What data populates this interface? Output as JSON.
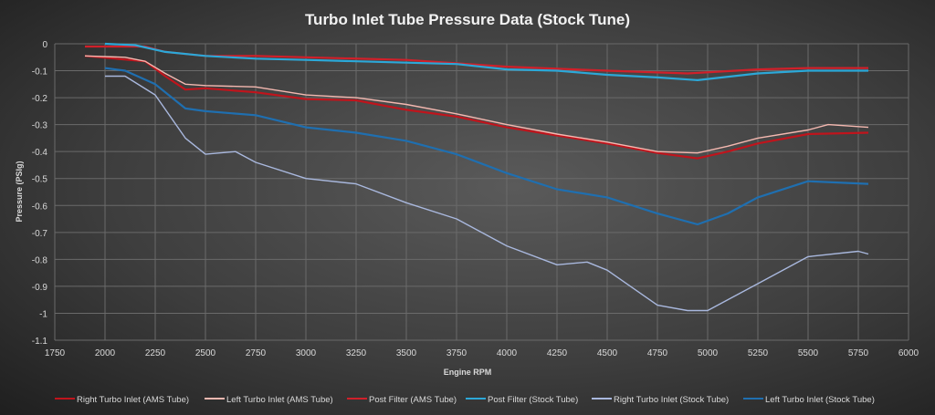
{
  "chart_data": {
    "type": "line",
    "title": "Turbo Inlet Tube Pressure Data (Stock Tune)",
    "xlabel": "Engine RPM",
    "ylabel": "Pressure (PSIg)",
    "xlim": [
      1750,
      6000
    ],
    "ylim": [
      -1.1,
      0
    ],
    "xticks": [
      1750,
      2000,
      2250,
      2500,
      2750,
      3000,
      3250,
      3500,
      3750,
      4000,
      4250,
      4500,
      4750,
      5000,
      5250,
      5500,
      5750,
      6000
    ],
    "yticks": [
      0,
      -0.1,
      -0.2,
      -0.3,
      -0.4,
      -0.5,
      -0.6,
      -0.7,
      -0.8,
      -0.9,
      -1,
      -1.1
    ],
    "grid": true,
    "legend_position": "bottom",
    "series": [
      {
        "name": "Right Turbo Inlet (AMS Tube)",
        "color": "#c0141c",
        "x": [
          1900,
          2200,
          2300,
          2400,
          2500,
          2750,
          3000,
          3250,
          3500,
          3750,
          4000,
          4250,
          4500,
          4750,
          4950,
          5100,
          5250,
          5500,
          5800
        ],
        "y": [
          -0.045,
          -0.065,
          -0.12,
          -0.17,
          -0.165,
          -0.18,
          -0.205,
          -0.21,
          -0.245,
          -0.27,
          -0.31,
          -0.34,
          -0.37,
          -0.405,
          -0.425,
          -0.4,
          -0.37,
          -0.335,
          -0.33
        ]
      },
      {
        "name": "Left Turbo Inlet (AMS Tube)",
        "color": "#f4b8b0",
        "x": [
          1900,
          2100,
          2200,
          2300,
          2400,
          2500,
          2750,
          3000,
          3250,
          3500,
          3750,
          4000,
          4250,
          4500,
          4750,
          4950,
          5100,
          5250,
          5500,
          5600,
          5800
        ],
        "y": [
          -0.045,
          -0.05,
          -0.065,
          -0.11,
          -0.15,
          -0.155,
          -0.16,
          -0.19,
          -0.2,
          -0.225,
          -0.26,
          -0.3,
          -0.335,
          -0.365,
          -0.4,
          -0.405,
          -0.38,
          -0.35,
          -0.32,
          -0.3,
          -0.31
        ]
      },
      {
        "name": "Post Filter (AMS Tube)",
        "color": "#d0202a",
        "x": [
          1900,
          2200,
          2300,
          2500,
          2750,
          3000,
          3500,
          4000,
          4500,
          4900,
          5250,
          5500,
          5800
        ],
        "y": [
          -0.01,
          -0.01,
          -0.03,
          -0.045,
          -0.045,
          -0.05,
          -0.06,
          -0.085,
          -0.1,
          -0.11,
          -0.095,
          -0.09,
          -0.09
        ]
      },
      {
        "name": "Post Filter (Stock Tube)",
        "color": "#2ca8d8",
        "x": [
          2000,
          2150,
          2300,
          2500,
          2750,
          3000,
          3250,
          3500,
          3750,
          4000,
          4250,
          4500,
          4750,
          4950,
          5250,
          5500,
          5800
        ],
        "y": [
          0,
          -0.005,
          -0.03,
          -0.045,
          -0.055,
          -0.06,
          -0.065,
          -0.07,
          -0.075,
          -0.095,
          -0.1,
          -0.115,
          -0.125,
          -0.135,
          -0.11,
          -0.1,
          -0.1
        ]
      },
      {
        "name": "Right Turbo Inlet (Stock Tube)",
        "color": "#a9b8de",
        "x": [
          2000,
          2100,
          2250,
          2400,
          2500,
          2650,
          2750,
          3000,
          3250,
          3500,
          3750,
          4000,
          4250,
          4400,
          4500,
          4750,
          4900,
          5000,
          5250,
          5500,
          5750,
          5800
        ],
        "y": [
          -0.12,
          -0.12,
          -0.19,
          -0.35,
          -0.41,
          -0.4,
          -0.44,
          -0.5,
          -0.52,
          -0.59,
          -0.65,
          -0.75,
          -0.82,
          -0.81,
          -0.84,
          -0.97,
          -0.99,
          -0.99,
          -0.89,
          -0.79,
          -0.77,
          -0.78
        ]
      },
      {
        "name": "Left Turbo Inlet (Stock Tube)",
        "color": "#1f6fb0",
        "x": [
          2000,
          2100,
          2250,
          2400,
          2500,
          2750,
          3000,
          3250,
          3500,
          3750,
          4000,
          4250,
          4500,
          4750,
          4950,
          5100,
          5250,
          5500,
          5800
        ],
        "y": [
          -0.09,
          -0.1,
          -0.15,
          -0.24,
          -0.25,
          -0.265,
          -0.31,
          -0.33,
          -0.36,
          -0.41,
          -0.48,
          -0.54,
          -0.57,
          -0.63,
          -0.67,
          -0.63,
          -0.57,
          -0.51,
          -0.52
        ]
      }
    ]
  }
}
